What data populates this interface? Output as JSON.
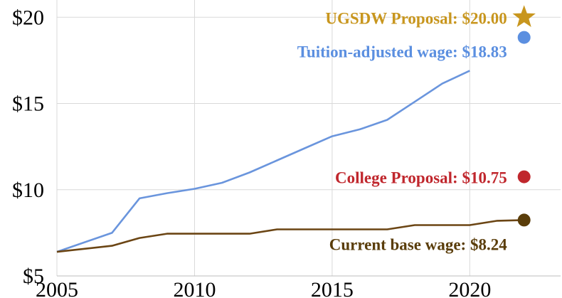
{
  "chart_data": {
    "type": "line",
    "title": "",
    "xlabel": "",
    "ylabel": "",
    "xlim": [
      2005,
      2023.3
    ],
    "ylim": [
      5,
      21
    ],
    "grid": true,
    "x_ticks": [
      2005,
      2010,
      2015,
      2020
    ],
    "x_tick_labels": [
      "2005",
      "2010",
      "2015",
      "2020"
    ],
    "y_ticks": [
      5,
      10,
      15,
      20
    ],
    "y_tick_labels": [
      "$5",
      "$10",
      "$15",
      "$20"
    ],
    "series": [
      {
        "color": "#6a95dd",
        "x": [
          2005,
          2007,
          2008,
          2009,
          2010,
          2011,
          2012,
          2013,
          2014,
          2015,
          2016,
          2017,
          2018,
          2019,
          2020
        ],
        "y": [
          6.4,
          7.5,
          9.5,
          9.8,
          10.05,
          10.4,
          11.0,
          11.7,
          12.4,
          13.1,
          13.5,
          14.05,
          15.1,
          16.15,
          16.9
        ]
      },
      {
        "color": "#6b4514",
        "x": [
          2005,
          2007,
          2008,
          2009,
          2010,
          2011,
          2012,
          2013,
          2014,
          2015,
          2016,
          2017,
          2018,
          2019,
          2020,
          2021,
          2022
        ],
        "y": [
          6.4,
          6.75,
          7.2,
          7.45,
          7.45,
          7.45,
          7.45,
          7.7,
          7.7,
          7.7,
          7.7,
          7.7,
          7.95,
          7.95,
          7.95,
          8.2,
          8.24
        ]
      }
    ],
    "annotations": [
      {
        "text": "UGSDW Proposal: $20.00",
        "x": 2022,
        "y": 20.0,
        "color": "#c8961e",
        "marker": "star"
      },
      {
        "text": "Tuition-adjusted wage: $18.83",
        "x": 2022,
        "y": 18.83,
        "color": "#5b8fe0",
        "marker": "circle"
      },
      {
        "text": "College Proposal: $10.75",
        "x": 2022,
        "y": 10.75,
        "color": "#c0272d",
        "marker": "circle"
      },
      {
        "text": "Current base wage: $8.24",
        "x": 2022,
        "y": 8.24,
        "color": "#5a3d0a",
        "marker": "circle"
      }
    ]
  }
}
